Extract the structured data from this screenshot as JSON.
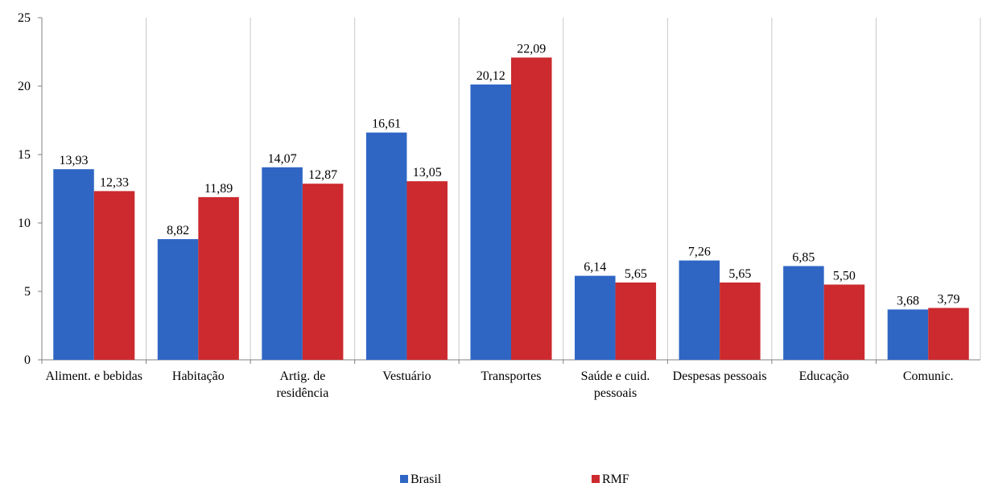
{
  "chart_data": {
    "type": "bar",
    "categories": [
      "Aliment. e bebidas",
      "Habitação",
      "Artig. de residência",
      "Vestuário",
      "Transportes",
      "Saúde e cuid. pessoais",
      "Despesas pessoais",
      "Educação",
      "Comunic."
    ],
    "series": [
      {
        "name": "Brasil",
        "color": "#2f66c4",
        "values": [
          13.93,
          8.82,
          14.07,
          16.61,
          20.12,
          6.14,
          7.26,
          6.85,
          3.68
        ],
        "value_labels": [
          "13,93",
          "8,82",
          "14,07",
          "16,61",
          "20,12",
          "6,14",
          "7,26",
          "6,85",
          "3,68"
        ]
      },
      {
        "name": "RMF",
        "color": "#cc2a2e",
        "values": [
          12.33,
          11.89,
          12.87,
          13.05,
          22.09,
          5.65,
          5.65,
          5.5,
          3.79
        ],
        "value_labels": [
          "12,33",
          "11,89",
          "12,87",
          "13,05",
          "22,09",
          "5,65",
          "5,65",
          "5,50",
          "3,79"
        ]
      }
    ],
    "ylim": [
      0,
      25
    ],
    "yticks": [
      0,
      5,
      10,
      15,
      20,
      25
    ],
    "legend": "bottom"
  }
}
